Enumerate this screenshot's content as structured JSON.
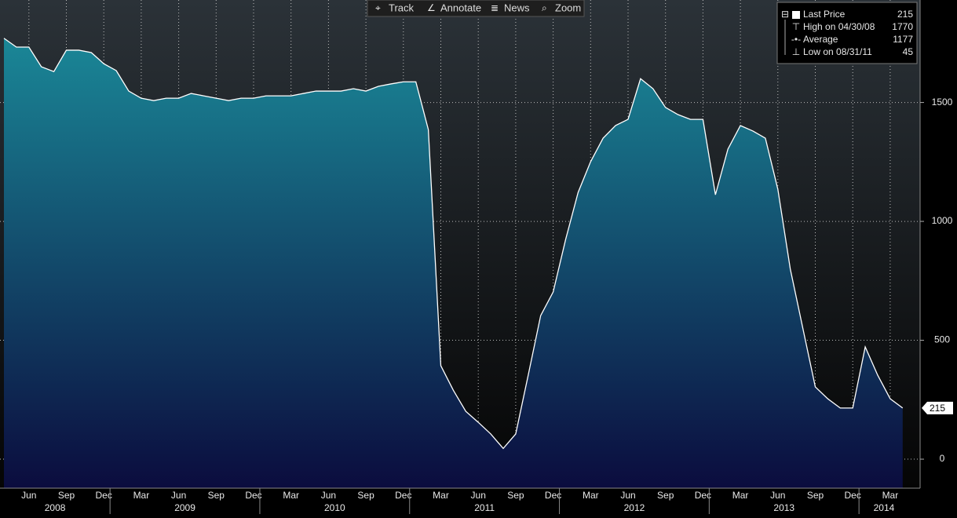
{
  "toolbar": [
    "Track",
    "Annotate",
    "News",
    "Zoom"
  ],
  "chart_data": {
    "type": "area",
    "categories": [
      null,
      null,
      "Jun",
      null,
      null,
      "Sep",
      null,
      null,
      "Dec",
      null,
      null,
      "Mar",
      null,
      null,
      "Jun",
      null,
      null,
      "Sep",
      null,
      null,
      "Dec",
      null,
      null,
      "Mar",
      null,
      null,
      "Jun",
      null,
      null,
      "Sep",
      null,
      null,
      "Dec",
      null,
      null,
      "Mar",
      null,
      null,
      "Jun",
      null,
      null,
      "Sep",
      null,
      null,
      "Dec",
      null,
      null,
      "Mar",
      null,
      null,
      "Jun",
      null,
      null,
      "Sep",
      null,
      null,
      "Dec",
      null,
      null,
      "Mar",
      null,
      null,
      "Jun",
      null,
      null,
      "Sep",
      null,
      null,
      "Dec",
      null,
      null,
      "Mar",
      null
    ],
    "years": [
      "2008",
      "2009",
      "2010",
      "2011",
      "2012",
      "2013",
      "2014"
    ],
    "series": [
      {
        "name": "Last Price",
        "color": "#ffffff",
        "values": [
          1770,
          1733,
          1733,
          1650,
          1630,
          1720,
          1720,
          1710,
          1663,
          1634,
          1548,
          1518,
          1508,
          1518,
          1518,
          1538,
          1528,
          1518,
          1508,
          1518,
          1518,
          1528,
          1528,
          1528,
          1538,
          1548,
          1548,
          1548,
          1558,
          1548,
          1568,
          1578,
          1587,
          1587,
          1386,
          393,
          290,
          201,
          155,
          106,
          45,
          106,
          353,
          604,
          703,
          924,
          1122,
          1251,
          1350,
          1403,
          1429,
          1600,
          1558,
          1479,
          1449,
          1429,
          1429,
          1112,
          1304,
          1403,
          1380,
          1350,
          1135,
          799,
          551,
          304,
          254,
          215,
          215,
          472,
          353,
          254,
          215
        ]
      }
    ],
    "legend": [
      {
        "label": "Last Price",
        "value": 215
      },
      {
        "label": "High on 04/30/08",
        "value": 1770
      },
      {
        "label": "Average",
        "value": 1177
      },
      {
        "label": "Low on 08/31/11",
        "value": 45
      }
    ],
    "ylim": [
      -122,
      1931
    ],
    "yticks": [
      0,
      500,
      1000,
      1500
    ],
    "grid": true,
    "fill_top": "#1a8797",
    "fill_bottom": "#0b0c3e"
  }
}
